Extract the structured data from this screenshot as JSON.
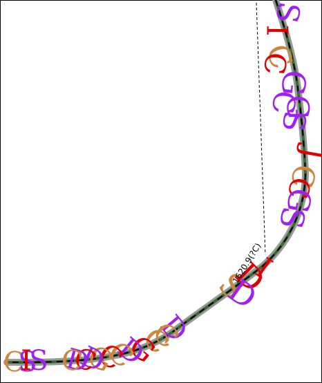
{
  "annotation": {
    "text": "1620.9(?C)"
  },
  "colors": {
    "frame": "#000000",
    "track_outer": "#999999",
    "track_inner": "#3b6a33",
    "track_dash": "#000000",
    "leader": "#000000",
    "purple": "#a020f0",
    "red": "#e00000",
    "tan": "#cd853f"
  },
  "glyphs": [
    {
      "text": "S",
      "color": "purple",
      "icon": "letter-s-glyph"
    },
    {
      "text": "I",
      "color": "red",
      "icon": "letter-i-glyph"
    },
    {
      "text": "C",
      "color": "tan",
      "icon": "letter-c-glyph"
    },
    {
      "text": "C",
      "color": "red",
      "icon": "letter-c-glyph"
    },
    {
      "text": "G",
      "color": "purple",
      "icon": "letter-g-glyph"
    },
    {
      "text": "C",
      "color": "purple",
      "icon": "letter-c-glyph"
    },
    {
      "text": "G",
      "color": "purple",
      "icon": "letter-g-glyph"
    },
    {
      "text": "S",
      "color": "purple",
      "icon": "letter-s-glyph"
    },
    {
      "text": "J",
      "color": "red",
      "icon": "letter-j-glyph"
    },
    {
      "text": "C",
      "color": "tan",
      "icon": "letter-c-glyph"
    },
    {
      "text": "C",
      "color": "red",
      "icon": "letter-c-glyph"
    },
    {
      "text": "G",
      "color": "purple",
      "icon": "letter-g-glyph"
    },
    {
      "text": "S",
      "color": "purple",
      "icon": "letter-s-glyph"
    },
    {
      "text": "S",
      "color": "tan",
      "icon": "letter-s-glyph"
    },
    {
      "text": "D",
      "color": "red",
      "icon": "letter-d-glyph"
    },
    {
      "text": "D",
      "color": "purple",
      "icon": "letter-d-glyph"
    },
    {
      "text": "I",
      "color": "red",
      "icon": "letter-i-glyph"
    },
    {
      "text": "D",
      "color": "purple",
      "icon": "letter-d-glyph"
    },
    {
      "text": "C",
      "color": "tan",
      "icon": "letter-c-glyph"
    },
    {
      "text": "C",
      "color": "tan",
      "icon": "letter-c-glyph"
    },
    {
      "text": "G",
      "color": "red",
      "icon": "letter-g-glyph"
    },
    {
      "text": "D",
      "color": "purple",
      "icon": "letter-d-glyph"
    },
    {
      "text": "C",
      "color": "tan",
      "icon": "letter-c-glyph"
    },
    {
      "text": "C",
      "color": "red",
      "icon": "letter-c-glyph"
    },
    {
      "text": "G",
      "color": "tan",
      "icon": "letter-g-glyph"
    },
    {
      "text": "D",
      "color": "purple",
      "icon": "letter-d-glyph"
    },
    {
      "text": "C",
      "color": "red",
      "icon": "letter-c-glyph"
    },
    {
      "text": "D",
      "color": "purple",
      "icon": "letter-d-glyph"
    },
    {
      "text": "C",
      "color": "tan",
      "icon": "letter-c-glyph"
    },
    {
      "text": "C",
      "color": "tan",
      "icon": "letter-c-glyph"
    },
    {
      "text": "S",
      "color": "purple",
      "icon": "letter-s-glyph"
    },
    {
      "text": "I",
      "color": "red",
      "icon": "letter-i-glyph"
    },
    {
      "text": "S",
      "color": "purple",
      "icon": "letter-s-glyph"
    }
  ]
}
